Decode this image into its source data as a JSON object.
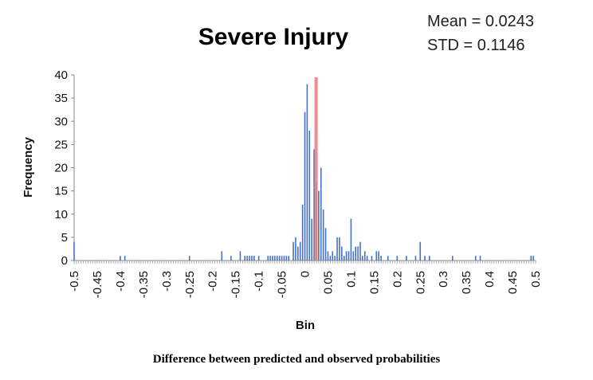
{
  "chart_data": {
    "type": "bar",
    "title": "Severe Injury",
    "stats": {
      "mean_label": "Mean = 0.0243",
      "std_label": "STD = 0.1146"
    },
    "xlabel": "Bin",
    "ylabel": "Frequency",
    "caption": "Difference between predicted and observed probabilities",
    "xlim": [
      -0.5,
      0.5
    ],
    "ylim": [
      0,
      40
    ],
    "yticks": [
      0,
      5,
      10,
      15,
      20,
      25,
      30,
      35,
      40
    ],
    "xticks": [
      "-0.5",
      "-0.45",
      "-0.4",
      "-0.35",
      "-0.3",
      "-0.25",
      "-0.2",
      "-0.15",
      "-0.1",
      "-0.05",
      "0",
      "0.05",
      "0.1",
      "0.15",
      "0.2",
      "0.25",
      "0.3",
      "0.35",
      "0.4",
      "0.45",
      "0.5"
    ],
    "bin_width": 0.005,
    "colors": {
      "bars": "#4472C4",
      "mean_line": "#F08080"
    },
    "mean_line_x": 0.0243,
    "series": [
      {
        "x": [
          -0.5,
          -0.4,
          -0.39,
          -0.25,
          -0.18,
          -0.16,
          -0.14,
          -0.13,
          -0.125,
          -0.12,
          -0.115,
          -0.11,
          -0.1,
          -0.08,
          -0.075,
          -0.07,
          -0.065,
          -0.06,
          -0.055,
          -0.05,
          -0.045,
          -0.04,
          -0.035,
          -0.025,
          -0.02,
          -0.015,
          -0.01,
          -0.005,
          0,
          0.005,
          0.01,
          0.015,
          0.02,
          0.025,
          0.03,
          0.035,
          0.04,
          0.045,
          0.05,
          0.055,
          0.06,
          0.065,
          0.07,
          0.075,
          0.08,
          0.085,
          0.09,
          0.095,
          0.1,
          0.105,
          0.11,
          0.115,
          0.12,
          0.125,
          0.13,
          0.135,
          0.145,
          0.155,
          0.16,
          0.165,
          0.18,
          0.2,
          0.22,
          0.24,
          0.25,
          0.26,
          0.27,
          0.32,
          0.37,
          0.38,
          0.49,
          0.495
        ],
        "y": [
          4,
          1,
          1,
          1,
          2,
          1,
          2,
          1,
          1,
          1,
          1,
          1,
          1,
          1,
          1,
          1,
          1,
          1,
          1,
          1,
          1,
          1,
          1,
          4,
          5,
          3,
          4,
          12,
          32,
          38,
          28,
          9,
          24,
          17,
          15,
          20,
          11,
          7,
          2,
          1,
          2,
          1,
          5,
          5,
          3,
          1,
          2,
          2,
          9,
          2,
          3,
          3,
          4,
          1,
          2,
          1,
          1,
          2,
          2,
          1,
          1,
          1,
          1,
          1,
          4,
          1,
          1,
          1,
          1,
          1,
          1,
          1
        ]
      }
    ]
  }
}
